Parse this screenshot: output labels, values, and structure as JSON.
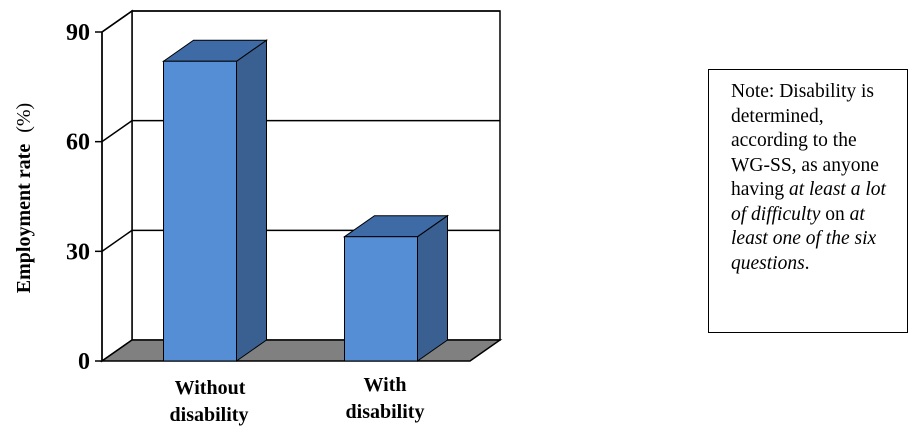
{
  "chart_data": {
    "type": "bar",
    "categories": [
      "Without disability",
      "With disability"
    ],
    "category_lines": [
      [
        "Without",
        "disability"
      ],
      [
        "With",
        "disability"
      ]
    ],
    "values": [
      82,
      34
    ],
    "ylabel": "Employment rate",
    "ylabel_unit": "(%)",
    "ylim": [
      0,
      90
    ],
    "yticks": [
      0,
      30,
      60,
      90
    ],
    "bar_color": "#558ed5",
    "bar_side_color": "#3a5f91",
    "bar_top_color": "#3e6aa6",
    "floor_color": "#808080",
    "grid": true,
    "three_d": true
  },
  "note": {
    "parts": [
      {
        "text": "Note: Disability is determined, according to the WG-SS, as anyone having ",
        "italic": false
      },
      {
        "text": "at least a lot of difficulty",
        "italic": true
      },
      {
        "text": " on ",
        "italic": false
      },
      {
        "text": "at least one of the six questions",
        "italic": true
      },
      {
        "text": ".",
        "italic": false
      }
    ]
  }
}
